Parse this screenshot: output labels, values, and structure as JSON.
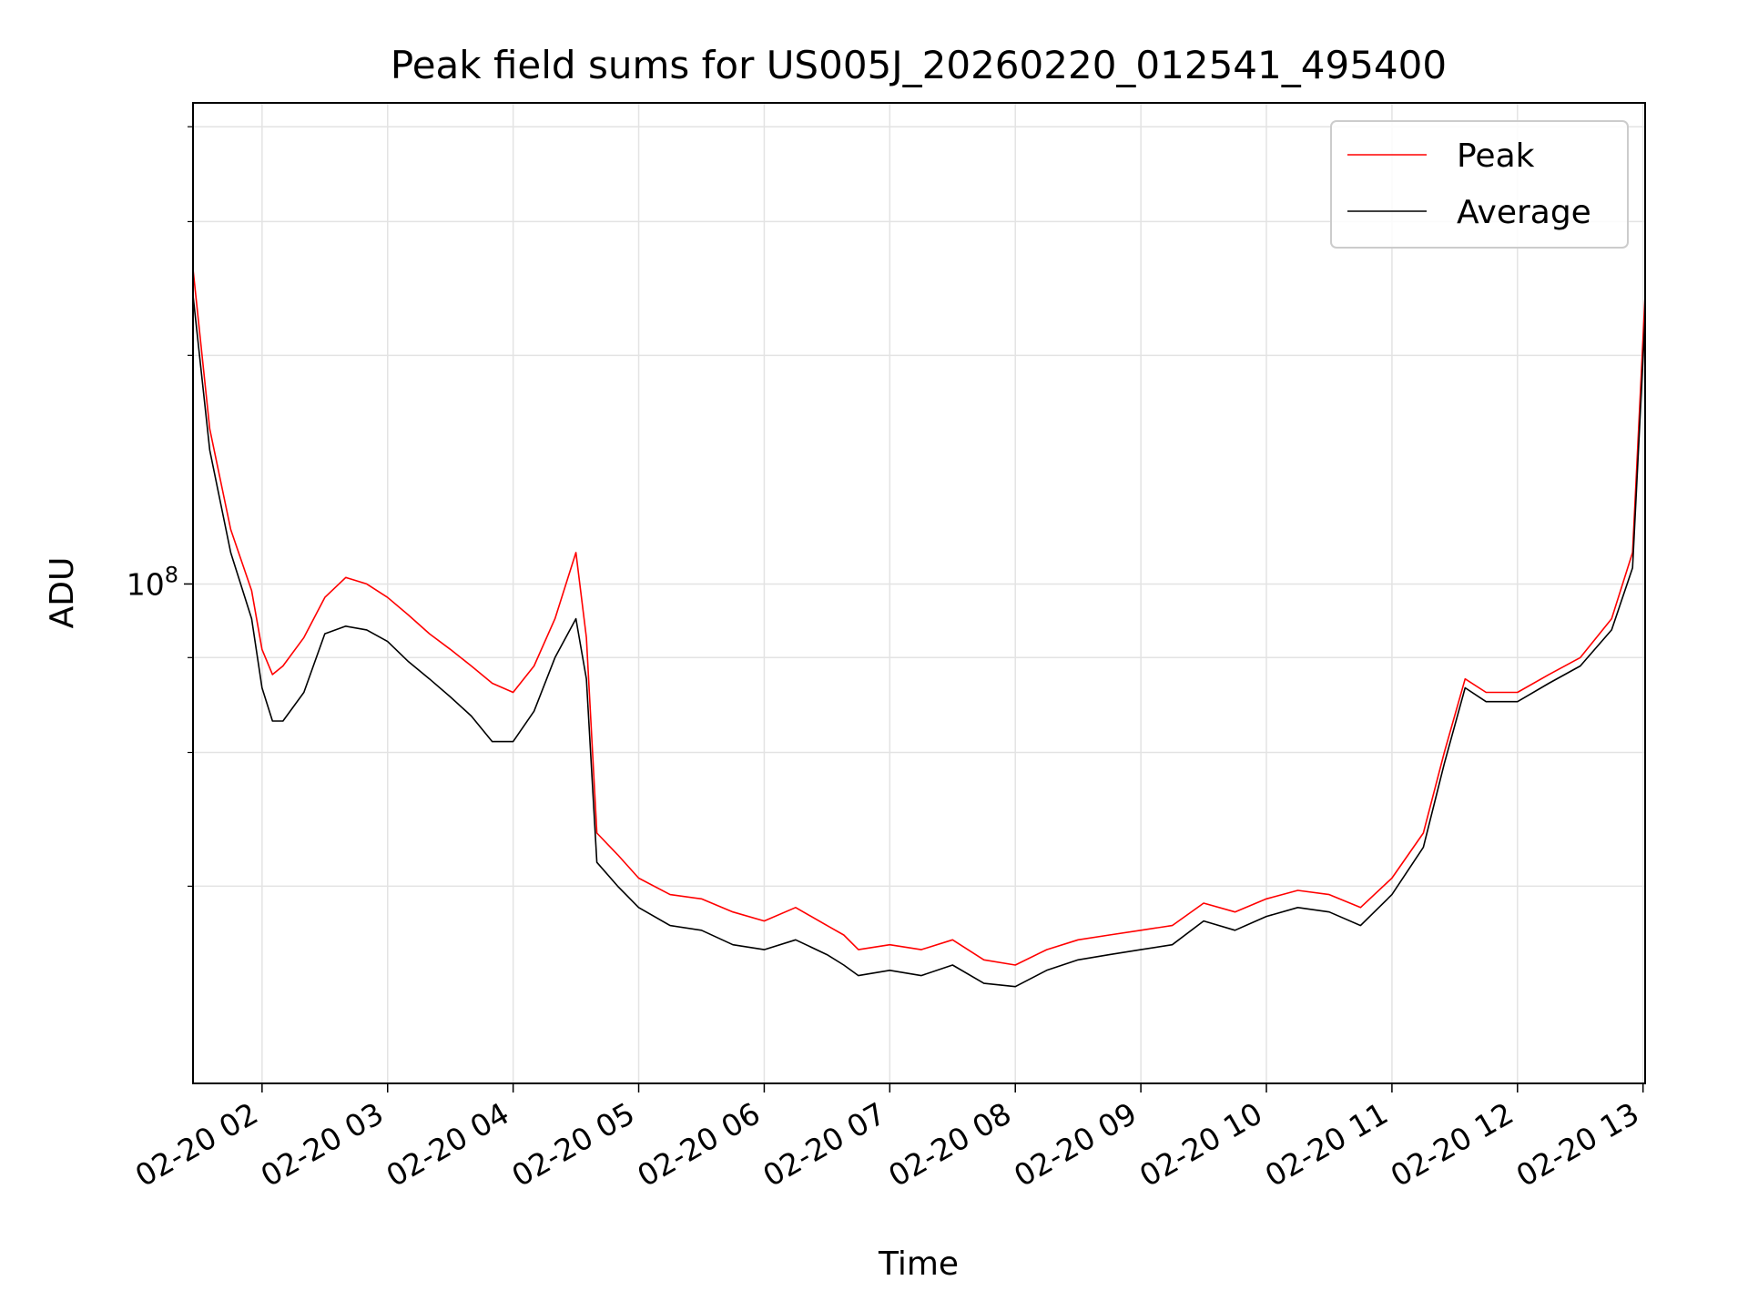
{
  "chart_data": {
    "type": "line",
    "title": "Peak field sums for US005J_20260220_012541_495400",
    "xlabel": "Time",
    "ylabel": "ADU",
    "y_scale": "log",
    "xlim": [
      "2026-02-20 01:27",
      "2026-02-20 13:01"
    ],
    "ylim": [
      22000000,
      430000000
    ],
    "grid": true,
    "legend_position": "top-right",
    "x_tick_labels": [
      "02-20 02",
      "02-20 03",
      "02-20 04",
      "02-20 05",
      "02-20 06",
      "02-20 07",
      "02-20 08",
      "02-20 09",
      "02-20 10",
      "02-20 11",
      "02-20 12",
      "02-20 13"
    ],
    "x_tick_values": [
      "2026-02-20 02:00",
      "2026-02-20 03:00",
      "2026-02-20 04:00",
      "2026-02-20 05:00",
      "2026-02-20 06:00",
      "2026-02-20 07:00",
      "2026-02-20 08:00",
      "2026-02-20 09:00",
      "2026-02-20 10:00",
      "2026-02-20 11:00",
      "2026-02-20 12:00",
      "2026-02-20 13:00"
    ],
    "y_tick_labels": [
      {
        "base": "10",
        "exp": "8",
        "value": 100000000
      }
    ],
    "y_minor_ticks": [
      40000000,
      60000000,
      80000000,
      200000000,
      300000000,
      400000000
    ],
    "series": [
      {
        "name": "Peak",
        "color": "#ff0000",
        "x": [
          "01:27",
          "01:35",
          "01:45",
          "01:55",
          "02:00",
          "02:05",
          "02:10",
          "02:20",
          "02:30",
          "02:40",
          "02:50",
          "03:00",
          "03:10",
          "03:20",
          "03:30",
          "03:40",
          "03:50",
          "04:00",
          "04:10",
          "04:20",
          "04:30",
          "04:35",
          "04:40",
          "04:50",
          "05:00",
          "05:15",
          "05:30",
          "05:45",
          "06:00",
          "06:15",
          "06:30",
          "06:38",
          "06:45",
          "07:00",
          "07:15",
          "07:30",
          "07:45",
          "08:00",
          "08:15",
          "08:30",
          "08:45",
          "09:00",
          "09:15",
          "09:30",
          "09:45",
          "10:00",
          "10:15",
          "10:30",
          "10:45",
          "11:00",
          "11:15",
          "11:25",
          "11:35",
          "11:45",
          "12:00",
          "12:15",
          "12:30",
          "12:45",
          "12:55",
          "13:01"
        ],
        "values": [
          260000000,
          160000000,
          118000000,
          98000000,
          82000000,
          76000000,
          78000000,
          85000000,
          96000000,
          102000000,
          100000000,
          96000000,
          91000000,
          86000000,
          82000000,
          78000000,
          74000000,
          72000000,
          78000000,
          90000000,
          110000000,
          85000000,
          47000000,
          44000000,
          41000000,
          39000000,
          38500000,
          37000000,
          36000000,
          37500000,
          35500000,
          34500000,
          33000000,
          33500000,
          33000000,
          34000000,
          32000000,
          31500000,
          33000000,
          34000000,
          34500000,
          35000000,
          35500000,
          38000000,
          37000000,
          38500000,
          39500000,
          39000000,
          37500000,
          41000000,
          47000000,
          60000000,
          75000000,
          72000000,
          72000000,
          76000000,
          80000000,
          90000000,
          110000000,
          240000000
        ]
      },
      {
        "name": "Average",
        "color": "#000000",
        "x": [
          "01:27",
          "01:35",
          "01:45",
          "01:55",
          "02:00",
          "02:05",
          "02:10",
          "02:20",
          "02:30",
          "02:40",
          "02:50",
          "03:00",
          "03:10",
          "03:20",
          "03:30",
          "03:40",
          "03:50",
          "04:00",
          "04:10",
          "04:20",
          "04:30",
          "04:35",
          "04:40",
          "04:50",
          "05:00",
          "05:15",
          "05:30",
          "05:45",
          "06:00",
          "06:15",
          "06:30",
          "06:38",
          "06:45",
          "07:00",
          "07:15",
          "07:30",
          "07:45",
          "08:00",
          "08:15",
          "08:30",
          "08:45",
          "09:00",
          "09:15",
          "09:30",
          "09:45",
          "10:00",
          "10:15",
          "10:30",
          "10:45",
          "11:00",
          "11:15",
          "11:25",
          "11:35",
          "11:45",
          "12:00",
          "12:15",
          "12:30",
          "12:45",
          "12:55",
          "13:01"
        ],
        "values": [
          240000000,
          150000000,
          110000000,
          90000000,
          73000000,
          66000000,
          66000000,
          72000000,
          86000000,
          88000000,
          87000000,
          84000000,
          79000000,
          75000000,
          71000000,
          67000000,
          62000000,
          62000000,
          68000000,
          80000000,
          90000000,
          75000000,
          43000000,
          40000000,
          37500000,
          35500000,
          35000000,
          33500000,
          33000000,
          34000000,
          32500000,
          31500000,
          30500000,
          31000000,
          30500000,
          31500000,
          29800000,
          29500000,
          31000000,
          32000000,
          32500000,
          33000000,
          33500000,
          36000000,
          35000000,
          36500000,
          37500000,
          37000000,
          35500000,
          39000000,
          45000000,
          58000000,
          73000000,
          70000000,
          70000000,
          74000000,
          78000000,
          87000000,
          105000000,
          225000000
        ]
      }
    ]
  }
}
